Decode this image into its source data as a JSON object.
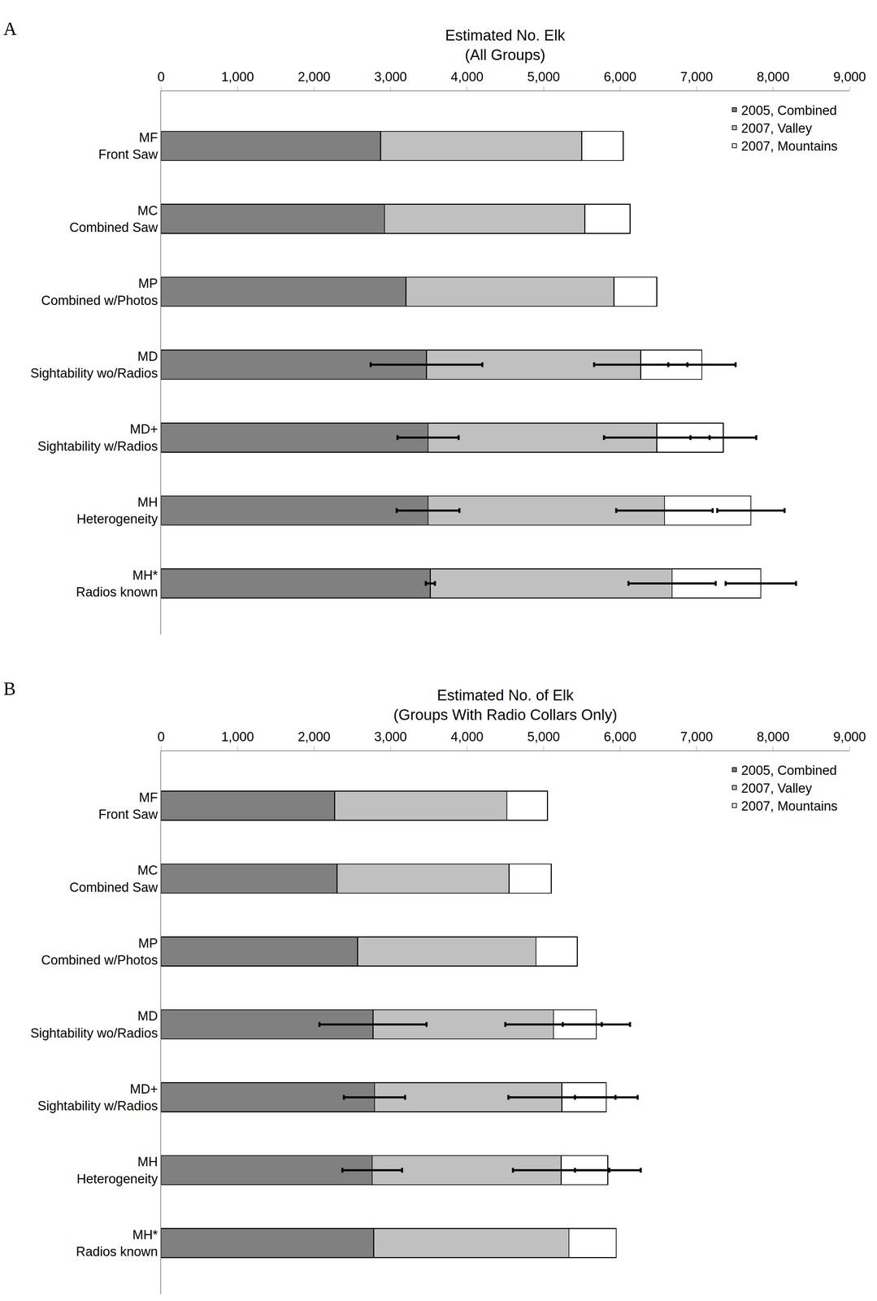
{
  "chart_data": [
    {
      "type": "bar",
      "panel_label": "A",
      "title": "Estimated No. Elk\n(All Groups)",
      "orientation": "horizontal",
      "stacked": true,
      "grid": false,
      "legend": "upper right",
      "categories": [
        "MF\nFront Saw",
        "MC\nCombined Saw",
        "MP\nCombined w/Photos",
        "MD\nSightability wo/Radios",
        "MD+\nSightability w/Radios",
        "MH\nHeterogeneity",
        "MH*\nRadios known"
      ],
      "series": [
        {
          "name": "2005, Combined",
          "color": "#808080",
          "values": [
            2870,
            2920,
            3200,
            3470,
            3490,
            3490,
            3520
          ],
          "errors": [
            null,
            null,
            null,
            730,
            400,
            410,
            60
          ]
        },
        {
          "name": "2007, Valley",
          "color": "#c0c0c0",
          "values": [
            2630,
            2620,
            2720,
            2800,
            2990,
            3090,
            3160
          ],
          "errors": [
            null,
            null,
            null,
            610,
            690,
            630,
            570
          ]
        },
        {
          "name": "2007, Mountains",
          "color": "#ffffff",
          "values": [
            540,
            590,
            560,
            800,
            870,
            1130,
            1160
          ],
          "errors": [
            null,
            null,
            null,
            440,
            430,
            440,
            460
          ]
        }
      ],
      "xlim": [
        0,
        9000
      ],
      "xticks": [
        0,
        {
          "value": 1000,
          "label": "1,000"
        },
        {
          "value": 2000,
          "label": "2,000"
        },
        {
          "value": 3000,
          "label": "3,000"
        },
        {
          "value": 4000,
          "label": "4,000"
        },
        {
          "value": 5000,
          "label": "5,000"
        },
        {
          "value": 6000,
          "label": "6,000"
        },
        {
          "value": 7000,
          "label": "7,000"
        },
        {
          "value": 8000,
          "label": "8,000"
        },
        {
          "value": 9000,
          "label": "9,000"
        }
      ]
    },
    {
      "type": "bar",
      "panel_label": "B",
      "title": "Estimated No. of Elk\n(Groups With Radio Collars Only)",
      "orientation": "horizontal",
      "stacked": true,
      "grid": false,
      "legend": "upper right",
      "categories": [
        "MF\nFront Saw",
        "MC\nCombined Saw",
        "MP\nCombined w/Photos",
        "MD\nSightability wo/Radios",
        "MD+\nSightability w/Radios",
        "MH\nHeterogeneity",
        "MH*\nRadios known"
      ],
      "series": [
        {
          "name": "2005, Combined",
          "color": "#808080",
          "values": [
            2270,
            2300,
            2570,
            2770,
            2790,
            2760,
            2780
          ],
          "errors": [
            null,
            null,
            null,
            700,
            400,
            390,
            null
          ]
        },
        {
          "name": "2007, Valley",
          "color": "#c0c0c0",
          "values": [
            2250,
            2250,
            2330,
            2360,
            2450,
            2470,
            2550
          ],
          "errors": [
            null,
            null,
            null,
            630,
            700,
            630,
            null
          ]
        },
        {
          "name": "2007, Mountains",
          "color": "#ffffff",
          "values": [
            530,
            550,
            540,
            560,
            580,
            610,
            620
          ],
          "errors": [
            null,
            null,
            null,
            440,
            410,
            430,
            null
          ]
        }
      ],
      "xlim": [
        0,
        9000
      ],
      "xticks": [
        0,
        {
          "value": 1000,
          "label": "1,000"
        },
        {
          "value": 2000,
          "label": "2,000"
        },
        {
          "value": 3000,
          "label": "3,000"
        },
        {
          "value": 4000,
          "label": "4,000"
        },
        {
          "value": 5000,
          "label": "5,000"
        },
        {
          "value": 6000,
          "label": "6,000"
        },
        {
          "value": 7000,
          "label": "7,000"
        },
        {
          "value": 8000,
          "label": "8,000"
        },
        {
          "value": 9000,
          "label": "9,000"
        }
      ]
    }
  ]
}
